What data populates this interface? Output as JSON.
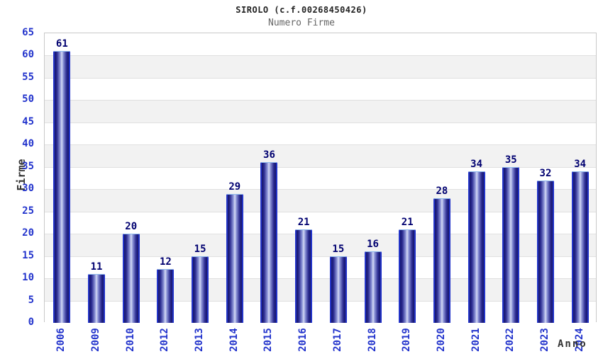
{
  "chart_data": {
    "type": "bar",
    "title": "SIROLO (c.f.00268450426)",
    "subtitle": "Numero Firme",
    "xlabel": "Anno",
    "ylabel": "Firme",
    "categories": [
      "2006",
      "2009",
      "2010",
      "2012",
      "2013",
      "2014",
      "2015",
      "2016",
      "2017",
      "2018",
      "2019",
      "2020",
      "2021",
      "2022",
      "2023",
      "2024"
    ],
    "values": [
      61,
      11,
      20,
      12,
      15,
      29,
      36,
      21,
      15,
      16,
      21,
      28,
      34,
      35,
      32,
      34
    ],
    "ylim": [
      0,
      65
    ],
    "ytick_step": 5,
    "grid": "horizontal-bands-alternating",
    "legend": "none",
    "bar_value_labels_shown": true
  },
  "colors": {
    "background": "#ffffff",
    "title": "#222222",
    "subtitle": "#666666",
    "tick_label": "#2233cc",
    "value_label": "#000070",
    "axis_title": "#333333",
    "band_alt": "#f2f2f2",
    "band_main": "#ffffff",
    "gridline": "#e0e0e0",
    "plot_border": "#c9c9c9",
    "bar_dark": "#14146a",
    "bar_mid": "#2b2b91",
    "bar_light_mid": "#8f97d9",
    "bar_light": "#d6dbf4",
    "bar_side_border": "#2334c8",
    "bar_top_border": "#8db8ec"
  }
}
